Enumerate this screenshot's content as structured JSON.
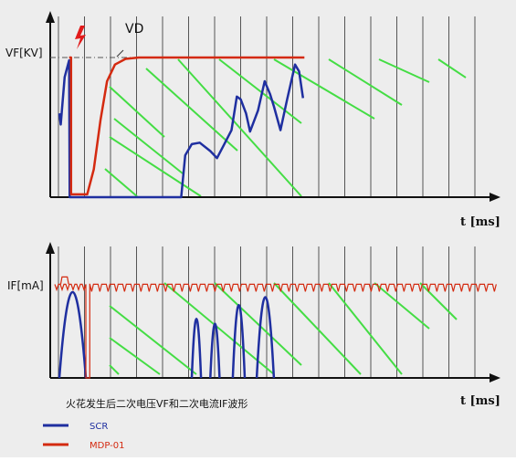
{
  "chart_data": [
    {
      "type": "line",
      "panel": "top",
      "ylabel": "VF[KV]",
      "xlabel": "t [ms]",
      "annotations": [
        "VD"
      ],
      "grid": true,
      "series": [
        {
          "name": "SCR",
          "color": "#1f2fa0",
          "points": [
            [
              0.0,
              0.6
            ],
            [
              0.05,
              0.52
            ],
            [
              0.2,
              0.86
            ],
            [
              0.37,
              0.98
            ],
            [
              0.39,
              0.0
            ],
            [
              4.6,
              0.0
            ],
            [
              4.75,
              0.3
            ],
            [
              5.0,
              0.38
            ],
            [
              5.3,
              0.39
            ],
            [
              5.7,
              0.33
            ],
            [
              5.95,
              0.28
            ],
            [
              6.2,
              0.37
            ],
            [
              6.5,
              0.48
            ],
            [
              6.7,
              0.72
            ],
            [
              6.85,
              0.7
            ],
            [
              7.05,
              0.6
            ],
            [
              7.2,
              0.47
            ],
            [
              7.5,
              0.62
            ],
            [
              7.75,
              0.83
            ],
            [
              7.95,
              0.74
            ],
            [
              8.1,
              0.65
            ],
            [
              8.35,
              0.48
            ],
            [
              8.6,
              0.7
            ],
            [
              8.9,
              0.95
            ],
            [
              9.05,
              0.9
            ],
            [
              9.2,
              0.71
            ]
          ]
        },
        {
          "name": "MDP-01",
          "color": "#d42a10",
          "points": [
            [
              0.37,
              1.0
            ],
            [
              0.44,
              1.0
            ],
            [
              0.44,
              0.02
            ],
            [
              1.05,
              0.02
            ],
            [
              1.3,
              0.2
            ],
            [
              1.55,
              0.55
            ],
            [
              1.8,
              0.83
            ],
            [
              2.1,
              0.95
            ],
            [
              2.5,
              0.99
            ],
            [
              3.0,
              1.0
            ],
            [
              9.25,
              1.0
            ]
          ]
        }
      ],
      "reference_line": {
        "label": "VD",
        "value": 1.0
      }
    },
    {
      "type": "line",
      "panel": "bottom",
      "ylabel": "IF[mA]",
      "xlabel": "t [ms]",
      "grid": true,
      "series": [
        {
          "name": "SCR",
          "color": "#1f2fa0",
          "arches": [
            [
              0.0,
              1.0,
              0.87
            ],
            [
              5.0,
              5.35,
              0.6
            ],
            [
              5.7,
              6.05,
              0.55
            ],
            [
              6.55,
              7.0,
              0.74
            ],
            [
              7.45,
              8.1,
              0.82
            ]
          ]
        },
        {
          "name": "MDP-01",
          "color": "#d42a10",
          "level": 0.95,
          "gap": [
            1.0,
            1.15
          ]
        }
      ]
    }
  ],
  "caption": "火花发生后二次电压VF和二次电流IF波形",
  "legend": [
    {
      "label": "SCR",
      "color": "#1f2fa0"
    },
    {
      "label": "MDP-01",
      "color": "#d42a10"
    }
  ],
  "colors": {
    "grid": "#555555",
    "hatch": "#44dd44",
    "refline": "#555555",
    "spark": "#e21a1a",
    "axis": "#111111"
  }
}
